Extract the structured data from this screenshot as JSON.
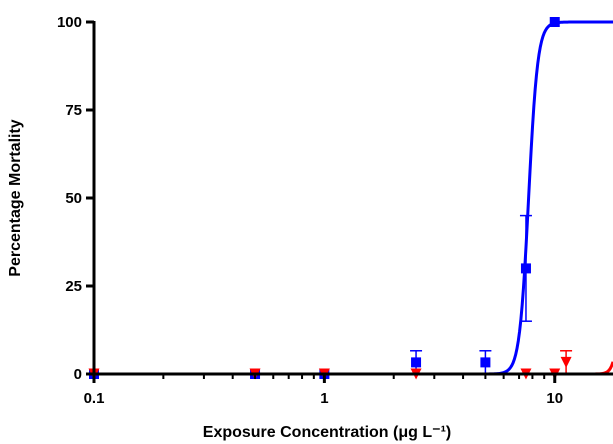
{
  "chart_data": {
    "type": "scatter",
    "title": "",
    "xlabel": "Exposure Concentration (μg L⁻¹)",
    "ylabel": "Percentage Mortality",
    "x_scale": "log",
    "xlim": [
      0.1,
      17.9
    ],
    "ylim": [
      0,
      100
    ],
    "x_ticks": [
      "0.1",
      "1",
      "10"
    ],
    "y_ticks": [
      "0",
      "25",
      "50",
      "75",
      "100"
    ],
    "grid": false,
    "legend": "none",
    "series": [
      {
        "color": "#0000ff",
        "marker": "square",
        "points": [
          {
            "x": 0.1,
            "y": 0,
            "err": 0
          },
          {
            "x": 0.5,
            "y": 0,
            "err": 0
          },
          {
            "x": 1,
            "y": 0,
            "err": 0
          },
          {
            "x": 2.5,
            "y": 3.3,
            "err": 3.3
          },
          {
            "x": 5,
            "y": 3.3,
            "err": 3.3
          },
          {
            "x": 7.5,
            "y": 30,
            "err": 15
          },
          {
            "x": 10,
            "y": 100,
            "err": 0
          }
        ],
        "fit": {
          "type": "sigmoid",
          "ec50": 7.7,
          "hill": 22
        }
      },
      {
        "color": "#ff0000",
        "marker": "triangle-down",
        "points": [
          {
            "x": 0.1,
            "y": 0,
            "err": 0
          },
          {
            "x": 0.5,
            "y": 0,
            "err": 0
          },
          {
            "x": 1,
            "y": 0,
            "err": 0
          },
          {
            "x": 2.5,
            "y": 0,
            "err": 0
          },
          {
            "x": 7.5,
            "y": 0,
            "err": 0
          },
          {
            "x": 10,
            "y": 0,
            "err": 0
          },
          {
            "x": 11.2,
            "y": 3.3,
            "err": 3.3
          }
        ],
        "fit": {
          "type": "sigmoid",
          "ec50": 20,
          "hill": 30
        }
      }
    ]
  }
}
